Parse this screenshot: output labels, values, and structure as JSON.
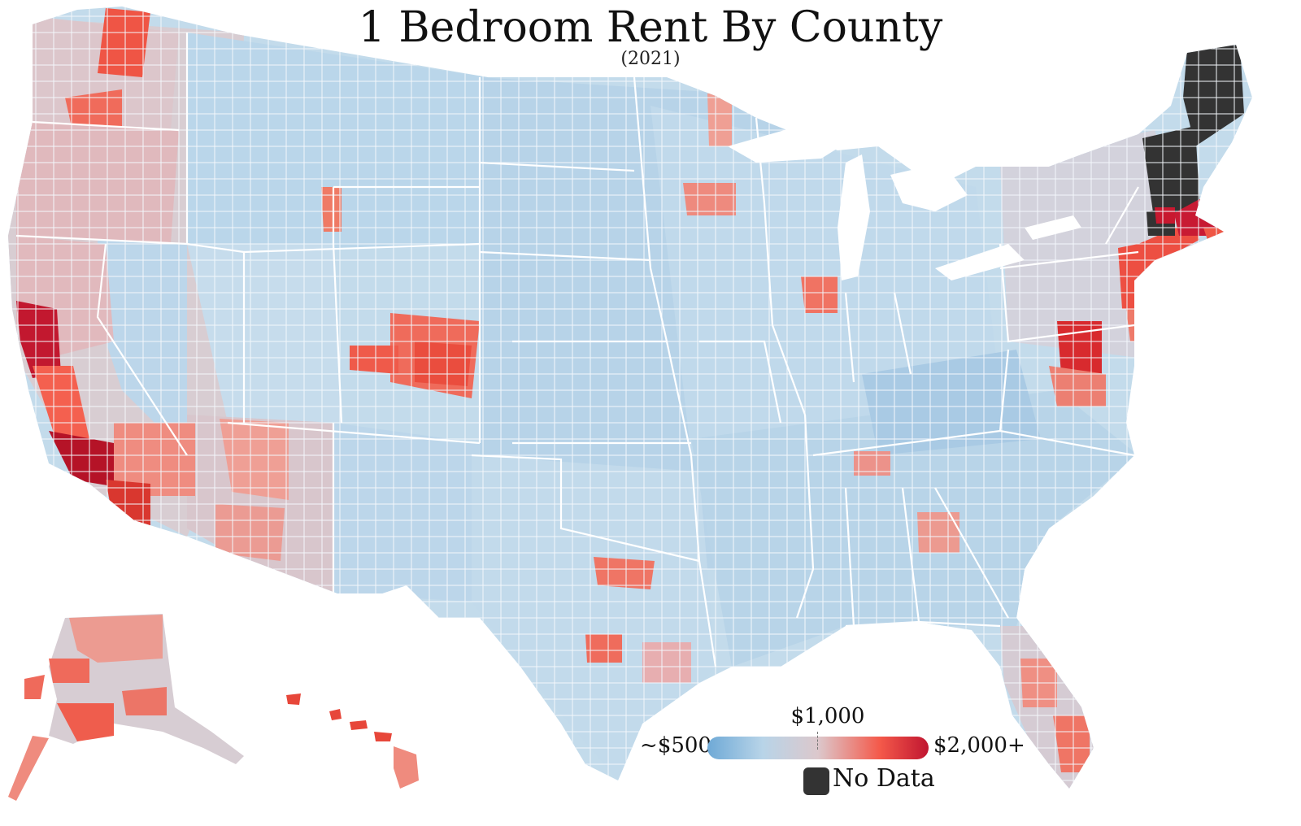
{
  "map": {
    "title": "1 Bedroom Rent By County",
    "subtitle": "(2021)"
  },
  "legend": {
    "min_label": "~$500",
    "mid_label": "$1,000",
    "max_label": "$2,000+",
    "no_data_label": "No Data",
    "scale_min_rent": 500,
    "scale_mid_rent": 1000,
    "scale_max_rent": 2000
  },
  "colors": {
    "low": "#6ea9d6",
    "low_mid": "#b8d4e8",
    "mid": "#dcc8cc",
    "high_mid": "#f0968a",
    "high": "#f4594a",
    "max": "#c01530",
    "no_data": "#333333",
    "border_state": "#ffffff",
    "border_county": "#eef3f8"
  }
}
